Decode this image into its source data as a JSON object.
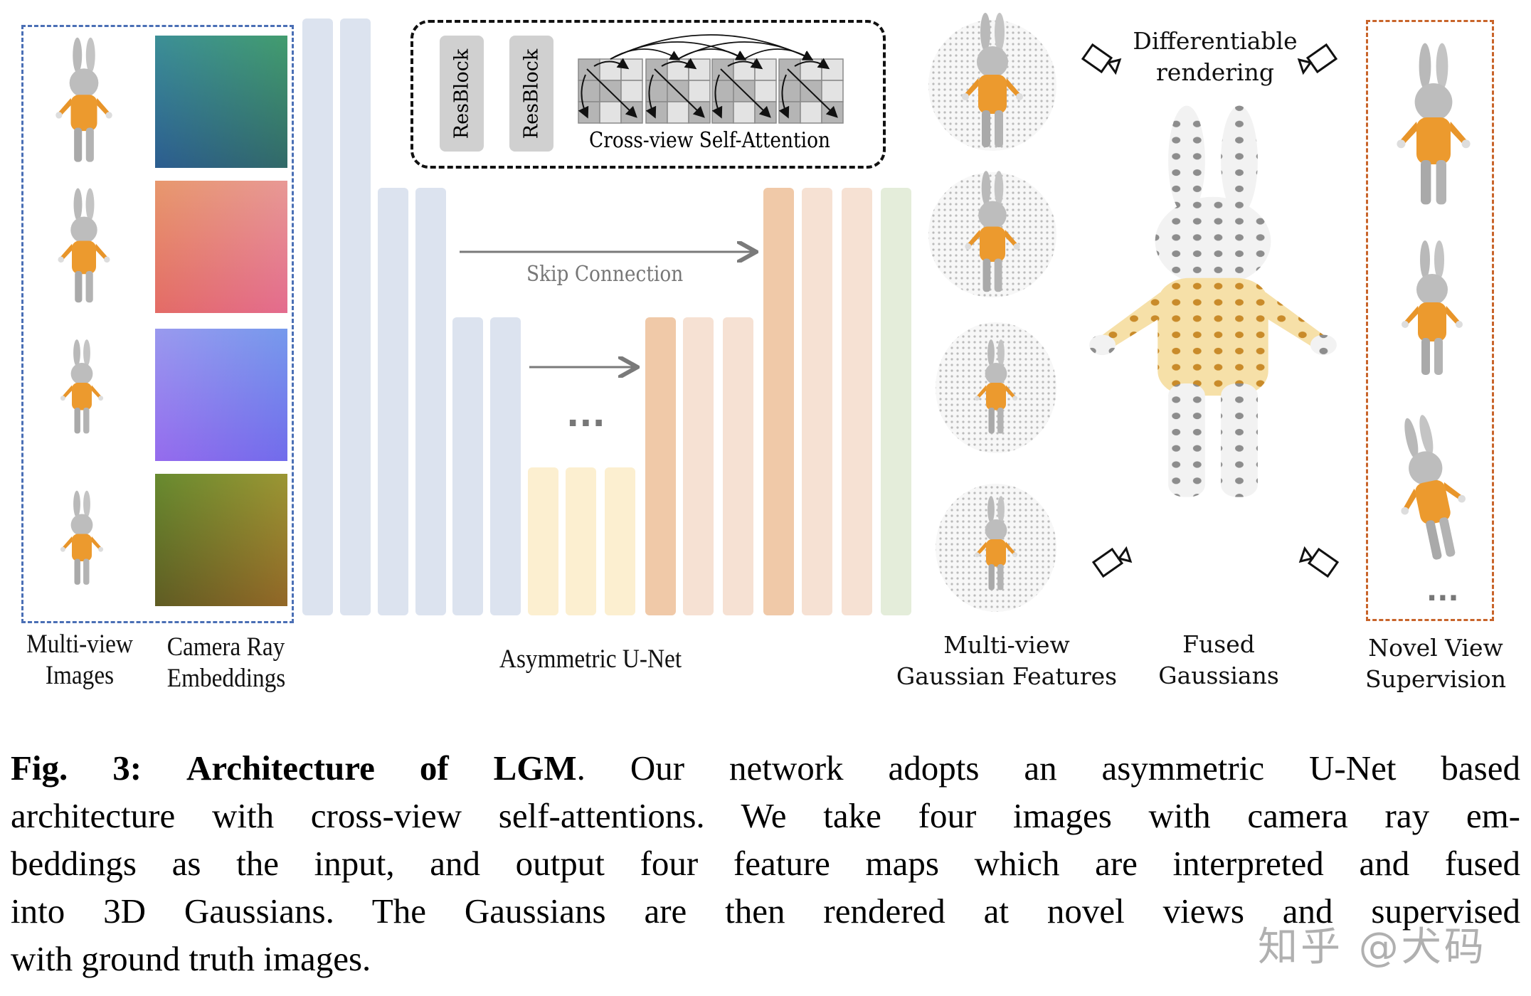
{
  "figure": {
    "inputs": {
      "images_label_line1": "Multi-view",
      "images_label_line2": "Images",
      "rays_label_line1": "Camera Ray",
      "rays_label_line2": "Embeddings"
    },
    "unet": {
      "label": "Asymmetric U-Net",
      "resblock_label": "ResBlock",
      "attention_label": "Cross-view Self-Attention",
      "skip_label": "Skip Connection",
      "ellipsis": "..."
    },
    "outputs": {
      "features_label_line1": "Multi-view",
      "features_label_line2": "Gaussian Features",
      "fused_label_line1": "Fused",
      "fused_label_line2": "Gaussians",
      "render_label_line1": "Differentiable",
      "render_label_line2": "rendering",
      "novel_label_line1": "Novel View",
      "novel_label_line2": "Supervision",
      "ellipsis": "..."
    },
    "colors": {
      "encoder": "#dce3ef",
      "bottleneck": "#fcefd0",
      "decoder_strong": "#f0c9a8",
      "decoder_light": "#f6e1d3",
      "output": "#e4edda",
      "input_box": "#4a6fb5",
      "supervision_box": "#c8642a"
    }
  },
  "caption": {
    "fig_number": "Fig. 3:",
    "title": "Architecture of LGM",
    "line1_rest": ". Our network adopts an asymmetric U-Net based",
    "line2": "architecture with cross-view self-attentions. We take four images with camera ray em-",
    "line3": "beddings as the input, and output four feature maps which are interpreted and fused",
    "line4": "into 3D Gaussians. The Gaussians are then rendered at novel views and supervised",
    "line5": "with ground truth images."
  },
  "watermark": "知乎 @犬码"
}
